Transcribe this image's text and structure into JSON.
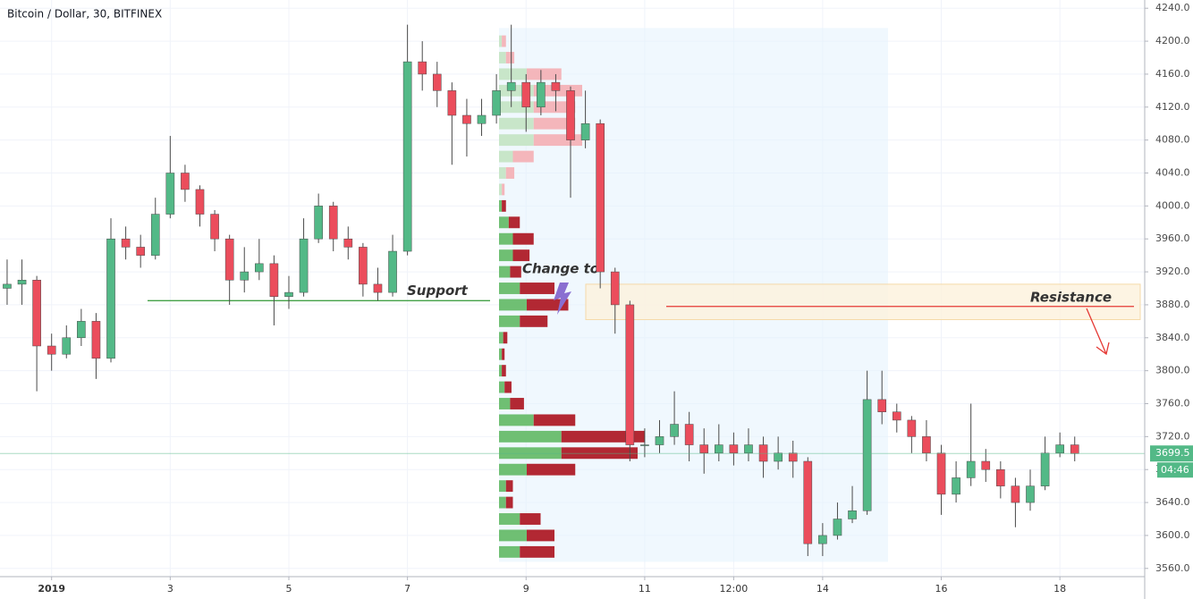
{
  "chart_data": {
    "type": "candlestick",
    "title": "Bitcoin / Dollar, 30, BITFINEX",
    "x": [
      0.25,
      0.5,
      0.75,
      1,
      1.25,
      1.5,
      1.75,
      2,
      2.25,
      2.5,
      2.75,
      3,
      3.25,
      3.5,
      3.75,
      4,
      4.25,
      4.5,
      4.75,
      5,
      5.25,
      5.5,
      5.75,
      6,
      6.25,
      6.5,
      6.75,
      7,
      7.25,
      7.5,
      7.75,
      8,
      8.25,
      8.5,
      8.75,
      9,
      9.25,
      9.5,
      9.75,
      10,
      10.25,
      10.5,
      10.75,
      11,
      11.25,
      11.5,
      11.75,
      12,
      12.25,
      12.5,
      12.75,
      13,
      13.25,
      13.5,
      13.75,
      14,
      14.25,
      14.5,
      14.75,
      15,
      15.25,
      15.5,
      15.75,
      16,
      16.25,
      16.5,
      16.75,
      17,
      17.25,
      17.5,
      17.75,
      18,
      18.25
    ],
    "open": [
      3900,
      3905,
      3910,
      3830,
      3820,
      3840,
      3860,
      3815,
      3960,
      3950,
      3940,
      3990,
      4040,
      4020,
      3990,
      3960,
      3910,
      3920,
      3930,
      3890,
      3895,
      3960,
      4000,
      3960,
      3950,
      3905,
      3895,
      3945,
      4175,
      4160,
      4140,
      4110,
      4100,
      4110,
      4140,
      4150,
      4120,
      4150,
      4140,
      4080,
      4100,
      3920,
      3880,
      3710,
      3710,
      3720,
      3735,
      3710,
      3700,
      3710,
      3700,
      3710,
      3690,
      3700,
      3690,
      3590,
      3600,
      3620,
      3630,
      3765,
      3750,
      3740,
      3720,
      3700,
      3650,
      3670,
      3690,
      3680,
      3660,
      3640,
      3660,
      3700,
      3710
    ],
    "high": [
      3935,
      3935,
      3915,
      3845,
      3855,
      3875,
      3870,
      3985,
      3975,
      3965,
      4010,
      4085,
      4050,
      4025,
      3995,
      3965,
      3950,
      3960,
      3940,
      3915,
      3985,
      4015,
      4005,
      3975,
      3955,
      3925,
      3965,
      4220,
      4200,
      4175,
      4150,
      4130,
      4130,
      4160,
      4220,
      4160,
      4165,
      4160,
      4145,
      4140,
      4105,
      3925,
      3885,
      3730,
      3740,
      3775,
      3750,
      3730,
      3735,
      3725,
      3730,
      3720,
      3720,
      3715,
      3695,
      3615,
      3640,
      3660,
      3800,
      3800,
      3760,
      3745,
      3740,
      3710,
      3690,
      3760,
      3705,
      3690,
      3670,
      3680,
      3720,
      3725,
      3720
    ],
    "low": [
      3880,
      3880,
      3775,
      3800,
      3815,
      3830,
      3790,
      3810,
      3935,
      3925,
      3935,
      3985,
      4005,
      3975,
      3945,
      3880,
      3895,
      3910,
      3855,
      3875,
      3890,
      3955,
      3945,
      3935,
      3890,
      3885,
      3890,
      3940,
      4140,
      4120,
      4050,
      4060,
      4085,
      4100,
      4120,
      4090,
      4110,
      4115,
      4010,
      4070,
      3900,
      3845,
      3690,
      3695,
      3700,
      3710,
      3690,
      3675,
      3690,
      3685,
      3690,
      3670,
      3680,
      3670,
      3575,
      3575,
      3595,
      3615,
      3625,
      3735,
      3725,
      3700,
      3690,
      3625,
      3640,
      3660,
      3665,
      3645,
      3610,
      3630,
      3655,
      3695,
      3690
    ],
    "close": [
      3905,
      3910,
      3830,
      3820,
      3840,
      3860,
      3815,
      3960,
      3950,
      3940,
      3990,
      4040,
      4020,
      3990,
      3960,
      3910,
      3920,
      3930,
      3890,
      3895,
      3960,
      4000,
      3960,
      3950,
      3905,
      3895,
      3945,
      4175,
      4160,
      4140,
      4110,
      4100,
      4110,
      4140,
      4150,
      4120,
      4150,
      4140,
      4080,
      4100,
      3920,
      3880,
      3710,
      3710,
      3720,
      3735,
      3710,
      3700,
      3710,
      3700,
      3710,
      3690,
      3700,
      3690,
      3590,
      3600,
      3620,
      3630,
      3765,
      3750,
      3740,
      3720,
      3700,
      3650,
      3670,
      3690,
      3680,
      3660,
      3640,
      3660,
      3700,
      3710,
      3699.5
    ],
    "up_color": "#53b987",
    "down_color": "#eb4d5c",
    "xlim": [
      0.13,
      19.43
    ],
    "xticks": [
      {
        "value": 1,
        "label": "2019"
      },
      3,
      5,
      7,
      9,
      11,
      {
        "value": 12.5,
        "label": "12:00"
      },
      14,
      16,
      18
    ],
    "ylim": [
      3550,
      4250
    ],
    "yticks": [
      {
        "value": 3560,
        "label": "3560.0"
      },
      {
        "value": 3600,
        "label": "3600.0"
      },
      {
        "value": 3640,
        "label": "3640.0"
      },
      {
        "value": 3680,
        "label": "3680.0"
      },
      {
        "value": 3720,
        "label": "3720.0"
      },
      {
        "value": 3760,
        "label": "3760.0"
      },
      {
        "value": 3800,
        "label": "3800.0"
      },
      {
        "value": 3840,
        "label": "3840.0"
      },
      {
        "value": 3880,
        "label": "3880.0"
      },
      {
        "value": 3920,
        "label": "3920.0"
      },
      {
        "value": 3960,
        "label": "3960.0"
      },
      {
        "value": 4000,
        "label": "4000.0"
      },
      {
        "value": 4040,
        "label": "4040.0"
      },
      {
        "value": 4080,
        "label": "4080.0"
      },
      {
        "value": 4120,
        "label": "4120.0"
      },
      {
        "value": 4160,
        "label": "4160.0"
      },
      {
        "value": 4200,
        "label": "4200.0"
      },
      {
        "value": 4240,
        "label": "4240.0"
      }
    ],
    "grid": true,
    "countdown": "04:46",
    "volume_profile": {
      "prices": [
        3580,
        3600,
        3620,
        3640,
        3660,
        3680,
        3700,
        3720,
        3740,
        3760,
        3780,
        3800,
        3820,
        3840,
        3860,
        3880,
        3900,
        3920,
        3940,
        3960,
        3980,
        4000,
        4020,
        4040,
        4060,
        4080,
        4100,
        4120,
        4140,
        4160,
        4180,
        4200
      ],
      "up": [
        15,
        20,
        15,
        5,
        5,
        20,
        45,
        45,
        25,
        8,
        4,
        2,
        2,
        3,
        15,
        20,
        15,
        8,
        10,
        10,
        7,
        2,
        2,
        5,
        10,
        25,
        25,
        25,
        25,
        20,
        5,
        2
      ],
      "down": [
        25,
        20,
        15,
        5,
        5,
        35,
        55,
        60,
        30,
        10,
        5,
        3,
        2,
        3,
        20,
        30,
        25,
        8,
        12,
        15,
        8,
        3,
        2,
        6,
        15,
        35,
        30,
        30,
        35,
        25,
        6,
        3
      ],
      "value_area": [
        3570,
        4010
      ]
    },
    "annotations": {
      "support": {
        "text": "Support",
        "price": 3885
      },
      "change": {
        "text": "Change to"
      },
      "resistance": {
        "text": "Resistance",
        "price": 3878,
        "zone": [
          3862,
          3905
        ]
      }
    }
  }
}
